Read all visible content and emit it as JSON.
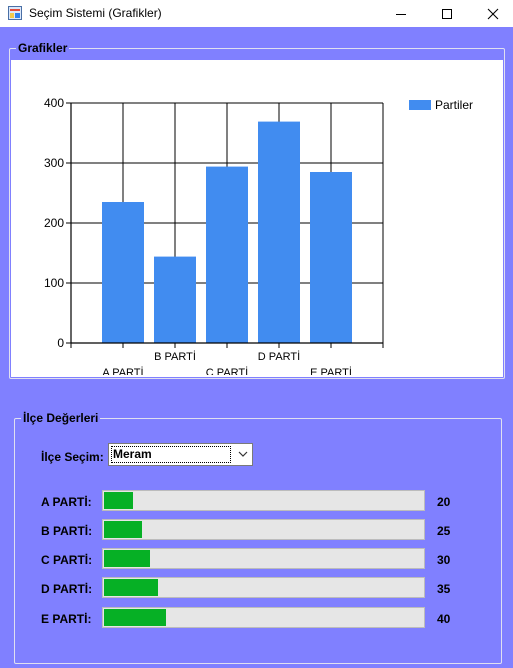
{
  "window": {
    "title": "Seçim Sistemi (Grafikler)"
  },
  "chart_group": {
    "title": "Grafikler"
  },
  "chart_data": {
    "type": "bar",
    "categories": [
      "A PARTİ",
      "B PARTİ",
      "C PARTİ",
      "D PARTİ",
      "E PARTİ"
    ],
    "series": [
      {
        "name": "Partiler",
        "values": [
          235,
          144,
          294,
          369,
          285
        ],
        "color": "#418cf0"
      }
    ],
    "ylim": [
      0,
      400
    ],
    "yticks": [
      0,
      100,
      200,
      300,
      400
    ],
    "grid": true,
    "legend": "top-right",
    "title": "",
    "xlabel": "",
    "ylabel": ""
  },
  "district_group": {
    "title": "İlçe Değerleri",
    "select_label": "İlçe Seçim:",
    "selected": "Meram",
    "rows": [
      {
        "label": "A PARTİ:",
        "value": "20",
        "progress": 0.09
      },
      {
        "label": "B PARTİ:",
        "value": "25",
        "progress": 0.12
      },
      {
        "label": "C PARTİ:",
        "value": "30",
        "progress": 0.145
      },
      {
        "label": "D PARTİ:",
        "value": "35",
        "progress": 0.17
      },
      {
        "label": "E PARTİ:",
        "value": "40",
        "progress": 0.195
      }
    ]
  },
  "colors": {
    "background": "#8080ff",
    "progress": "#06b025",
    "bar": "#418cf0"
  }
}
